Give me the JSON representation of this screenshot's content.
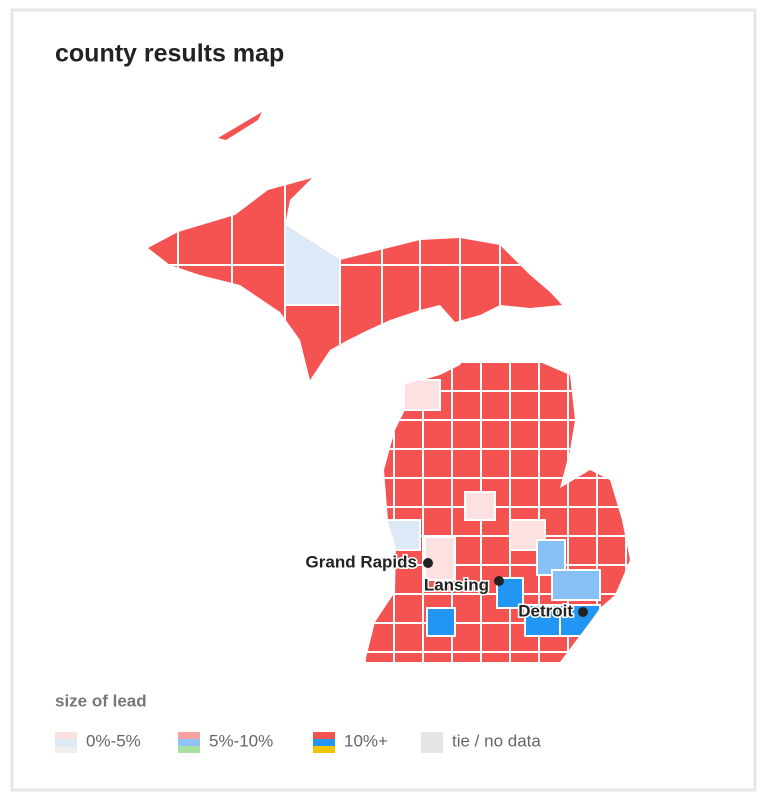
{
  "header": {
    "title": "county results map"
  },
  "cities": [
    {
      "label": "Grand Rapids"
    },
    {
      "label": "Lansing"
    },
    {
      "label": "Detroit"
    }
  ],
  "legend": {
    "title": "size of lead",
    "items": [
      "0%-5%",
      "5%-10%",
      "10%+",
      "tie / no data"
    ]
  }
}
